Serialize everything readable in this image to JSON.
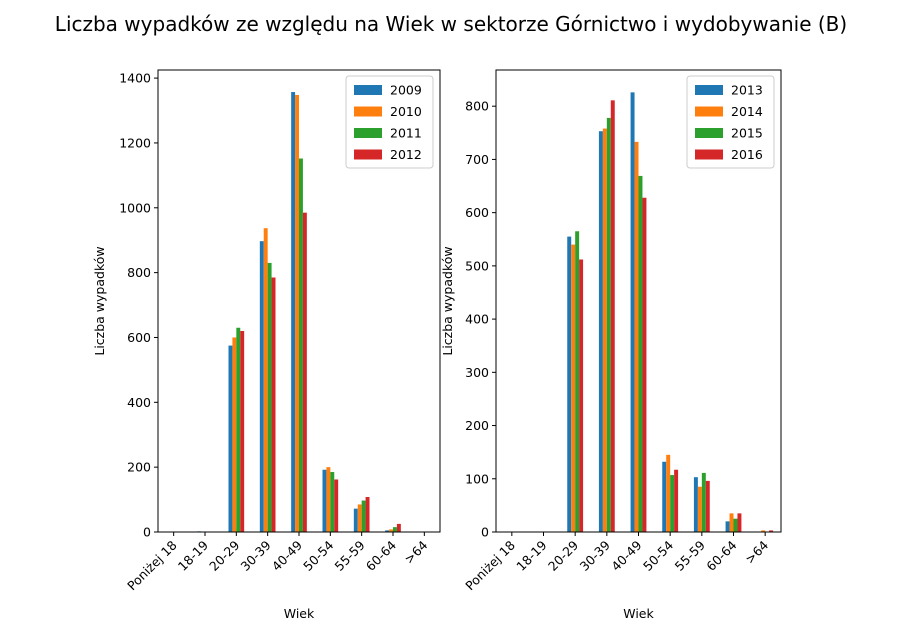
{
  "figure": {
    "title": "Liczba wypadków ze względu na Wiek w sektorze Górnictwo i wydobywanie (B)"
  },
  "chart_data": [
    {
      "type": "bar",
      "title": "",
      "xlabel": "Wiek",
      "ylabel": "Liczba wypadków",
      "categories": [
        "Poniżej 18",
        "18-19",
        "20-29",
        "30-39",
        "40-49",
        "50-54",
        "55-59",
        "60-64",
        ">64"
      ],
      "ylim": [
        0,
        1425
      ],
      "yticks": [
        0,
        200,
        400,
        600,
        800,
        1000,
        1200,
        1400
      ],
      "legend_position": "top-right",
      "series": [
        {
          "name": "2009",
          "color": "#1f77b4",
          "values": [
            0,
            2,
            575,
            897,
            1357,
            192,
            72,
            5,
            0
          ]
        },
        {
          "name": "2010",
          "color": "#ff7f0e",
          "values": [
            0,
            0,
            600,
            937,
            1348,
            200,
            85,
            8,
            0
          ]
        },
        {
          "name": "2011",
          "color": "#2ca02c",
          "values": [
            0,
            0,
            630,
            830,
            1152,
            185,
            97,
            15,
            0
          ]
        },
        {
          "name": "2012",
          "color": "#d62728",
          "values": [
            0,
            0,
            620,
            785,
            985,
            162,
            108,
            25,
            0
          ]
        }
      ]
    },
    {
      "type": "bar",
      "title": "",
      "xlabel": "Wiek",
      "ylabel": "Liczba wypadków",
      "categories": [
        "Poniżej 18",
        "18-19",
        "20-29",
        "30-39",
        "40-49",
        "50-54",
        "55-59",
        "60-64",
        ">64"
      ],
      "ylim": [
        0,
        868
      ],
      "yticks": [
        0,
        100,
        200,
        300,
        400,
        500,
        600,
        700,
        800
      ],
      "legend_position": "top-right",
      "series": [
        {
          "name": "2013",
          "color": "#1f77b4",
          "values": [
            0,
            0,
            555,
            753,
            826,
            132,
            103,
            20,
            0
          ]
        },
        {
          "name": "2014",
          "color": "#ff7f0e",
          "values": [
            0,
            0,
            540,
            758,
            733,
            145,
            85,
            35,
            3
          ]
        },
        {
          "name": "2015",
          "color": "#2ca02c",
          "values": [
            0,
            0,
            565,
            778,
            669,
            107,
            111,
            25,
            0
          ]
        },
        {
          "name": "2016",
          "color": "#d62728",
          "values": [
            0,
            0,
            512,
            811,
            628,
            117,
            96,
            35,
            3
          ]
        }
      ]
    }
  ]
}
